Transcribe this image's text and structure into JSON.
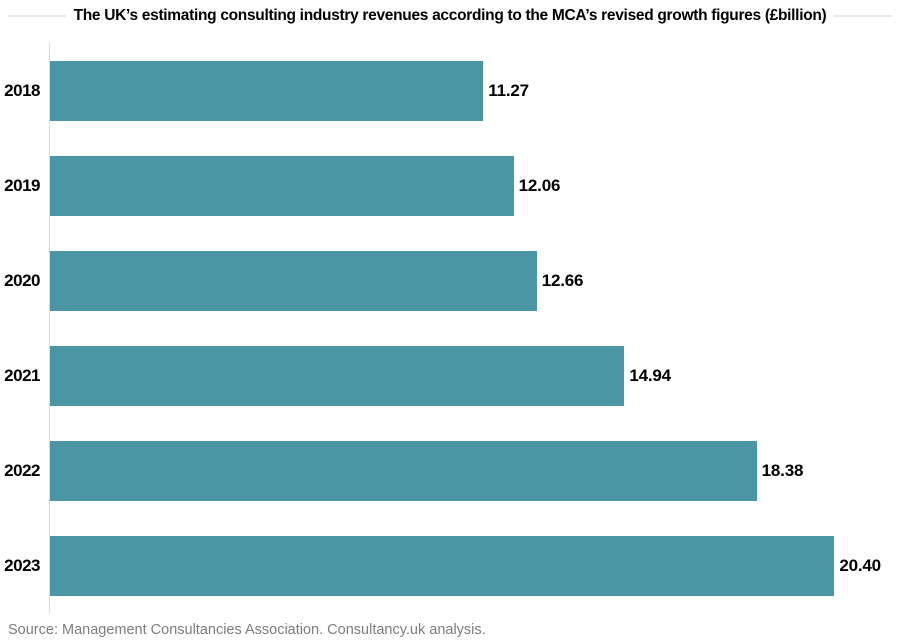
{
  "title": {
    "text": "The UK’s estimating consulting industry revenues according to the MCA’s revised growth figures (£billion)"
  },
  "source": {
    "text": "Source: Management Consultancies Association. Consultancy.uk analysis."
  },
  "chart_data": {
    "type": "bar",
    "orientation": "horizontal",
    "title": "The UK’s estimating consulting industry revenues according to the MCA’s revised growth figures (£billion)",
    "categories": [
      "2018",
      "2019",
      "2020",
      "2021",
      "2022",
      "2023"
    ],
    "values": [
      11.27,
      12.06,
      12.66,
      14.94,
      18.38,
      20.4
    ],
    "value_labels": [
      "11.27",
      "12.06",
      "12.66",
      "14.94",
      "18.38",
      "20.40"
    ],
    "xlabel": "",
    "ylabel": "",
    "xlim": [
      0,
      21.9
    ],
    "grid": false,
    "legend": false,
    "axis_ticks_visible": false,
    "bar_color": "#4A96A4",
    "axis_line_color": "#D9D9D9",
    "label_color": "#000000",
    "source_color": "#7D7D7D"
  }
}
